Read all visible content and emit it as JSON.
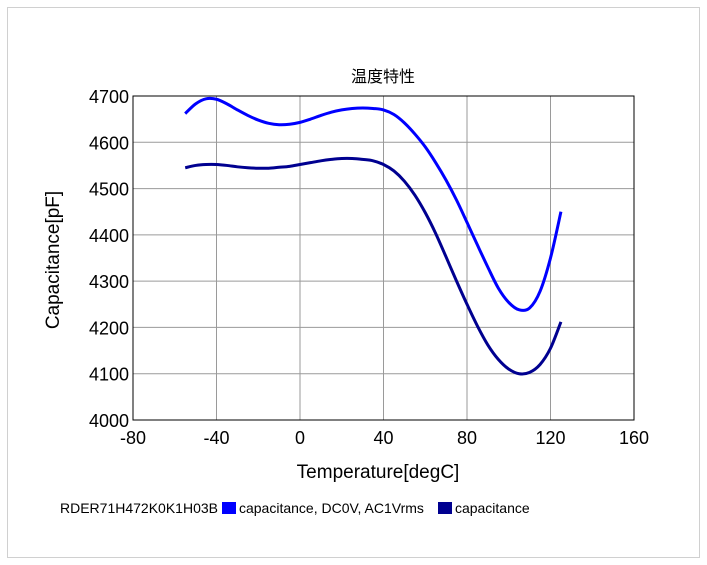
{
  "chart_data": {
    "type": "line",
    "title": "温度特性",
    "xlabel": "Temperature[degC]",
    "ylabel": "Capacitance[pF]",
    "xlim": [
      -80,
      160
    ],
    "ylim": [
      4000,
      4700
    ],
    "xticks": [
      -80,
      -40,
      0,
      40,
      80,
      120,
      160
    ],
    "yticks": [
      4000,
      4100,
      4200,
      4300,
      4400,
      4500,
      4600,
      4700
    ],
    "grid": true,
    "legend_position": "bottom",
    "legend_title": "RDER71H472K0K1H03B",
    "series": [
      {
        "name": "capacitance, DC0V, AC1Vrms",
        "color": "#0000ff",
        "x": [
          -55,
          -50,
          -45,
          -40,
          -35,
          -30,
          -25,
          -20,
          -15,
          -10,
          -5,
          0,
          5,
          10,
          15,
          20,
          25,
          30,
          35,
          40,
          45,
          50,
          55,
          60,
          65,
          70,
          75,
          80,
          85,
          90,
          95,
          100,
          105,
          110,
          115,
          120,
          125
        ],
        "y": [
          4662,
          4683,
          4694,
          4693,
          4683,
          4670,
          4658,
          4648,
          4641,
          4638,
          4639,
          4643,
          4650,
          4658,
          4665,
          4670,
          4673,
          4674,
          4673,
          4670,
          4660,
          4642,
          4618,
          4590,
          4556,
          4518,
          4475,
          4427,
          4378,
          4330,
          4285,
          4254,
          4238,
          4242,
          4278,
          4350,
          4450
        ]
      },
      {
        "name": "capacitance",
        "color": "#000090",
        "x": [
          -55,
          -50,
          -45,
          -40,
          -35,
          -30,
          -25,
          -20,
          -15,
          -10,
          -5,
          0,
          5,
          10,
          15,
          20,
          25,
          30,
          35,
          40,
          45,
          50,
          55,
          60,
          65,
          70,
          75,
          80,
          85,
          90,
          95,
          100,
          105,
          110,
          115,
          120,
          125
        ],
        "y": [
          4545,
          4550,
          4552,
          4552,
          4550,
          4547,
          4545,
          4544,
          4544,
          4546,
          4548,
          4552,
          4556,
          4560,
          4563,
          4565,
          4565,
          4563,
          4560,
          4552,
          4538,
          4516,
          4486,
          4448,
          4403,
          4352,
          4300,
          4250,
          4203,
          4162,
          4131,
          4110,
          4100,
          4103,
          4120,
          4155,
          4212
        ]
      }
    ]
  }
}
